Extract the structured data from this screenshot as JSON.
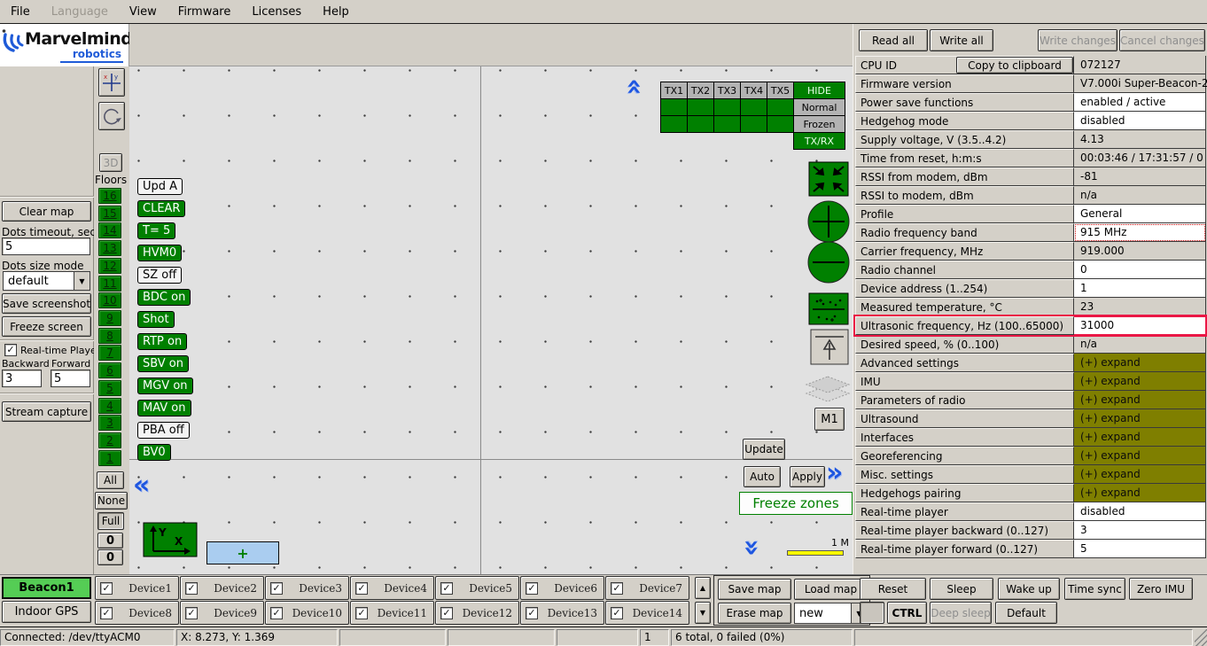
{
  "menu": {
    "items": [
      {
        "label": "File",
        "enabled": true
      },
      {
        "label": "Language",
        "enabled": false
      },
      {
        "label": "View",
        "enabled": true
      },
      {
        "label": "Firmware",
        "enabled": true
      },
      {
        "label": "Licenses",
        "enabled": true
      },
      {
        "label": "Help",
        "enabled": true
      }
    ]
  },
  "logo": {
    "brand": "Marvelmind",
    "sub": "robotics"
  },
  "sidebar": {
    "clear_map": "Clear map",
    "dots_timeout_label": "Dots timeout, sec",
    "dots_timeout_value": "5",
    "dots_size_label": "Dots size mode",
    "dots_size_value": "default",
    "save_screenshot": "Save screenshot",
    "freeze_screen": "Freeze screen",
    "realtime_player_label": "Real-time Player",
    "realtime_player_checked": true,
    "backward_label": "Backward",
    "forward_label": "Forward",
    "backward_value": "3",
    "forward_value": "5",
    "stream_capture": "Stream capture"
  },
  "left_toolbar": {
    "btn_3d": "3D",
    "floors_title": "Floors"
  },
  "floors": {
    "numbers": [
      "16",
      "15",
      "14",
      "13",
      "12",
      "11",
      "10",
      "9",
      "8",
      "7",
      "6",
      "5",
      "4",
      "3",
      "2",
      "1"
    ],
    "all": "All",
    "none": "None",
    "full": "Full",
    "counter_top": "0",
    "counter_bottom": "0"
  },
  "map": {
    "tx_table": {
      "headers": [
        "TX1",
        "TX2",
        "TX3",
        "TX4",
        "TX5"
      ],
      "hide": "HIDE",
      "normal": "Normal",
      "frozen": "Frozen",
      "txrx": "TX/RX"
    },
    "cmd_buttons": [
      {
        "label": "Upd A",
        "variant": "light"
      },
      {
        "label": "CLEAR",
        "variant": "green"
      },
      {
        "label": "T= 5",
        "variant": "green"
      },
      {
        "label": "HVM0",
        "variant": "green"
      },
      {
        "label": "SZ off",
        "variant": "light"
      },
      {
        "label": "BDC on",
        "variant": "green"
      },
      {
        "label": "Shot",
        "variant": "green"
      },
      {
        "label": "RTP on",
        "variant": "green"
      },
      {
        "label": "SBV on",
        "variant": "green"
      },
      {
        "label": "MGV on",
        "variant": "green"
      },
      {
        "label": "MAV on",
        "variant": "green"
      },
      {
        "label": "PBA off",
        "variant": "light"
      },
      {
        "label": "BV0",
        "variant": "green"
      }
    ],
    "m1": "M1",
    "update": "Update",
    "auto": "Auto",
    "apply": "Apply",
    "freeze_zones": "Freeze zones",
    "scale_label": "1 M",
    "plus": "+",
    "axis_x": "X",
    "axis_y": "Y"
  },
  "right_panel": {
    "read_all": "Read all",
    "write_all": "Write all",
    "write_changes": "Write changes",
    "cancel_changes": "Cancel changes",
    "copy_to_clipboard": "Copy to clipboard",
    "rows": [
      {
        "label": "CPU ID",
        "value": "072127",
        "bg": "chrome",
        "copy_button": true
      },
      {
        "label": "Firmware version",
        "value": "V7.000i Super-Beacon-2",
        "bg": "chrome"
      },
      {
        "label": "Power save functions",
        "value": "enabled / active",
        "bg": "white"
      },
      {
        "label": "Hedgehog mode",
        "value": "disabled",
        "bg": "white"
      },
      {
        "label": "Supply voltage, V (3.5..4.2)",
        "value": "4.13",
        "bg": "chrome"
      },
      {
        "label": "Time from reset, h:m:s",
        "value": "00:03:46 / 17:31:57 / 0",
        "bg": "chrome"
      },
      {
        "label": "RSSI from modem, dBm",
        "value": "-81",
        "bg": "chrome"
      },
      {
        "label": "RSSI to modem, dBm",
        "value": "n/a",
        "bg": "chrome"
      },
      {
        "label": "Profile",
        "value": "General",
        "bg": "white"
      },
      {
        "label": "Radio frequency band",
        "value": "915 MHz",
        "bg": "white",
        "dotted_red": true
      },
      {
        "label": "Carrier frequency, MHz",
        "value": "919.000",
        "bg": "chrome"
      },
      {
        "label": "Radio channel",
        "value": "0",
        "bg": "white"
      },
      {
        "label": "Device address (1..254)",
        "value": "1",
        "bg": "white"
      },
      {
        "label": "Measured temperature, °C",
        "value": "23",
        "bg": "chrome"
      },
      {
        "label": "Ultrasonic frequency, Hz (100..65000)",
        "value": "31000",
        "bg": "white",
        "highlighted": true
      },
      {
        "label": "Desired speed, % (0..100)",
        "value": "n/a",
        "bg": "chrome"
      },
      {
        "label": "Advanced settings",
        "value": "(+) expand",
        "bg": "olive"
      },
      {
        "label": "IMU",
        "value": "(+) expand",
        "bg": "olive"
      },
      {
        "label": "Parameters of radio",
        "value": "(+) expand",
        "bg": "olive"
      },
      {
        "label": "Ultrasound",
        "value": "(+) expand",
        "bg": "olive"
      },
      {
        "label": "Interfaces",
        "value": "(+) expand",
        "bg": "olive"
      },
      {
        "label": "Georeferencing",
        "value": "(+) expand",
        "bg": "olive"
      },
      {
        "label": "Misc. settings",
        "value": "(+) expand",
        "bg": "olive"
      },
      {
        "label": "Hedgehogs pairing",
        "value": "(+) expand",
        "bg": "olive"
      },
      {
        "label": "Real-time player",
        "value": "disabled",
        "bg": "white"
      },
      {
        "label": "Real-time player backward (0..127)",
        "value": "3",
        "bg": "white"
      },
      {
        "label": "Real-time player forward (0..127)",
        "value": "5",
        "bg": "white"
      }
    ]
  },
  "bottom": {
    "beacon_button": "Beacon1",
    "indoor_gps": "Indoor GPS",
    "devices": [
      "Device1",
      "Device2",
      "Device3",
      "Device4",
      "Device5",
      "Device6",
      "Device7",
      "Device8",
      "Device9",
      "Device10",
      "Device11",
      "Device12",
      "Device13",
      "Device14"
    ],
    "devices_checked": true,
    "save_map": "Save map",
    "load_map": "Load map",
    "erase_map": "Erase map",
    "map_select_value": "new",
    "reset": "Reset",
    "sleep": "Sleep",
    "wake_up": "Wake up",
    "time_sync": "Time sync",
    "zero_imu": "Zero IMU",
    "ctrl": "CTRL",
    "deep_sleep": "Deep sleep",
    "default": "Default"
  },
  "status": {
    "connection": "Connected: /dev/ttyACM0",
    "coords": "X: 8.273, Y: 1.369",
    "page": "1",
    "totals": "6 total, 0 failed (0%)"
  },
  "icons": {
    "checkmark": "✓",
    "up_arrow": "▲",
    "down_arrow": "▼",
    "dropdown_arrow": "▼",
    "chevron_left": "«",
    "chevron_right": "»"
  },
  "colors": {
    "accent_green": "#008000",
    "beacon_green": "#55cd55",
    "olive_expand": "#7f7f00",
    "highlight_red": "#ea1745",
    "chevron_blue": "#1e56e0",
    "map_bg": "#e1e1e1",
    "chrome": "#d4d0c8",
    "scale_yellow": "#ffff00",
    "plus_bg": "#aacdf0",
    "brand_blue": "#1f5bd8"
  }
}
